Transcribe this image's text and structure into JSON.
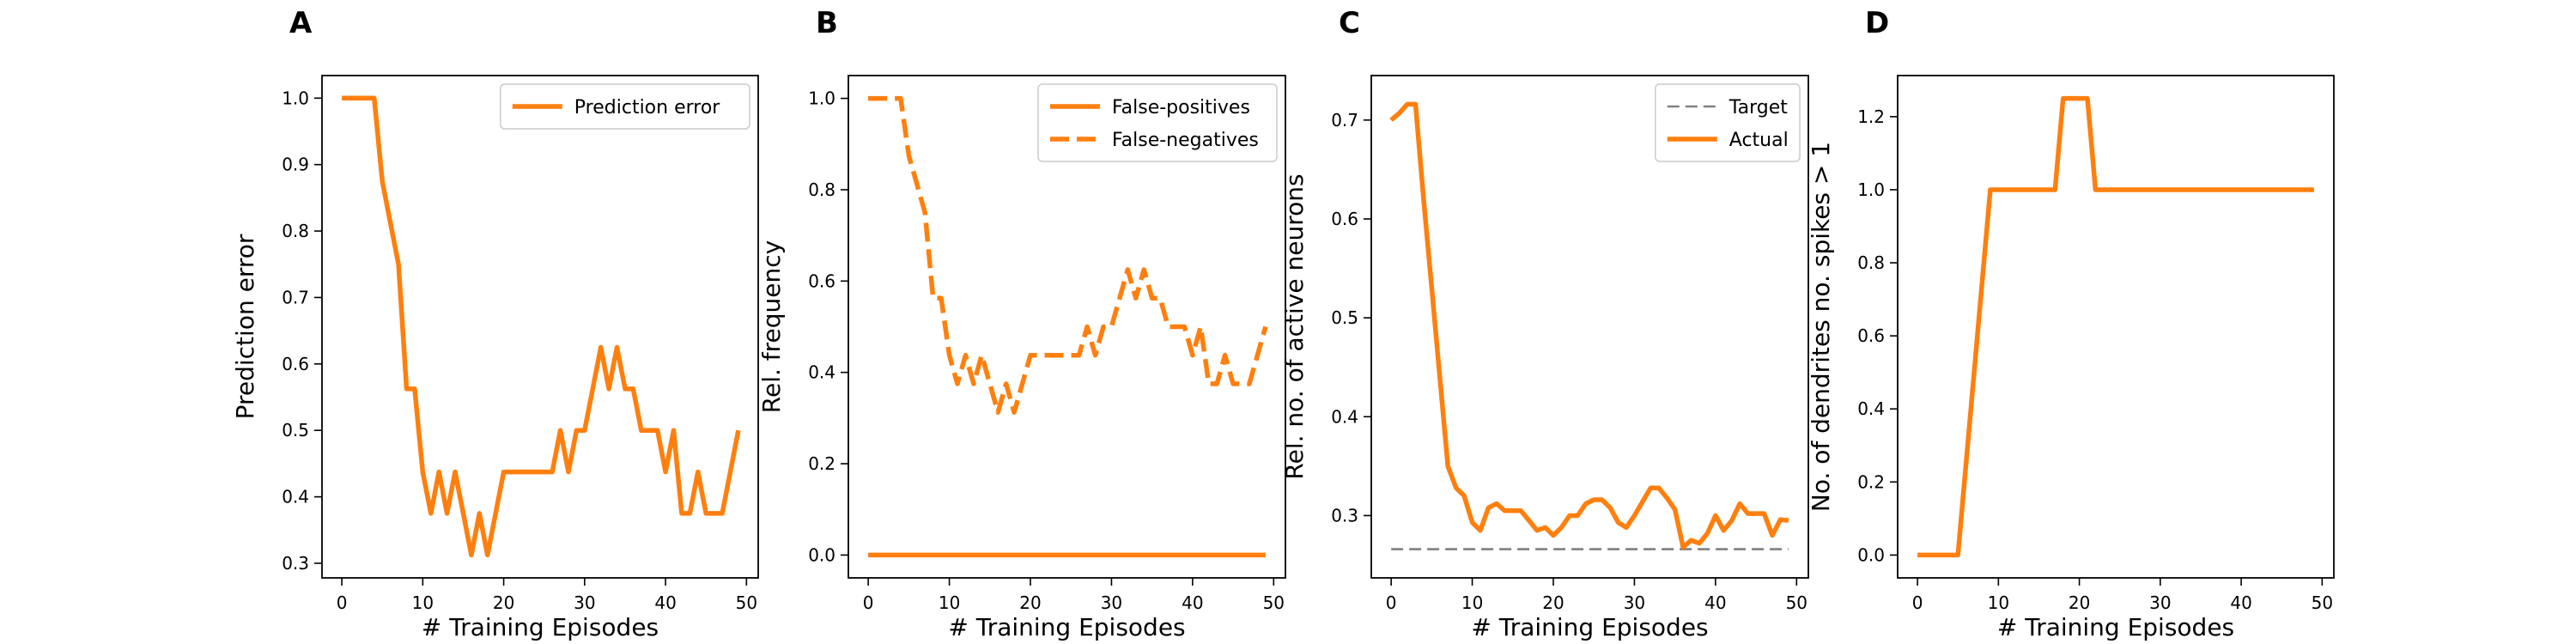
{
  "chart_data": [
    {
      "panel_label": "A",
      "type": "line",
      "xlabel": "# Training Episodes",
      "ylabel": "Prediction error",
      "xlim": [
        -2.45,
        51.45
      ],
      "ylim": [
        0.278,
        1.034
      ],
      "xticks": [
        0,
        10,
        20,
        30,
        40,
        50
      ],
      "yticks": [
        0.3,
        0.4,
        0.5,
        0.6,
        0.7,
        0.8,
        0.9,
        1.0
      ],
      "ytick_labels": [
        "0.3",
        "0.4",
        "0.5",
        "0.6",
        "0.7",
        "0.8",
        "0.9",
        "1.0"
      ],
      "legend": {
        "position": "top-right"
      },
      "series": [
        {
          "name": "Prediction error",
          "style": "solid",
          "color": "#ff7f0e",
          "x": [
            0,
            1,
            2,
            3,
            4,
            5,
            6,
            7,
            8,
            9,
            10,
            11,
            12,
            13,
            14,
            15,
            16,
            17,
            18,
            19,
            20,
            21,
            22,
            23,
            24,
            25,
            26,
            27,
            28,
            29,
            30,
            31,
            32,
            33,
            34,
            35,
            36,
            37,
            38,
            39,
            40,
            41,
            42,
            43,
            44,
            45,
            46,
            47,
            48,
            49
          ],
          "y": [
            1.0,
            1.0,
            1.0,
            1.0,
            1.0,
            0.875,
            0.8125,
            0.75,
            0.5625,
            0.5625,
            0.4375,
            0.375,
            0.4375,
            0.375,
            0.4375,
            0.375,
            0.3125,
            0.375,
            0.3125,
            0.375,
            0.4375,
            0.4375,
            0.4375,
            0.4375,
            0.4375,
            0.4375,
            0.4375,
            0.5,
            0.4375,
            0.5,
            0.5,
            0.5625,
            0.625,
            0.5625,
            0.625,
            0.5625,
            0.5625,
            0.5,
            0.5,
            0.5,
            0.4375,
            0.5,
            0.375,
            0.375,
            0.4375,
            0.375,
            0.375,
            0.375,
            0.4375,
            0.5
          ]
        }
      ]
    },
    {
      "panel_label": "B",
      "type": "line",
      "xlabel": "# Training Episodes",
      "ylabel": "Rel. frequency",
      "xlim": [
        -2.45,
        51.45
      ],
      "ylim": [
        -0.05,
        1.05
      ],
      "xticks": [
        0,
        10,
        20,
        30,
        40,
        50
      ],
      "yticks": [
        0.0,
        0.2,
        0.4,
        0.6,
        0.8,
        1.0
      ],
      "ytick_labels": [
        "0.0",
        "0.2",
        "0.4",
        "0.6",
        "0.8",
        "1.0"
      ],
      "legend": {
        "position": "top-right"
      },
      "series": [
        {
          "name": "False-positives",
          "style": "solid",
          "color": "#ff7f0e",
          "x": [
            0,
            49
          ],
          "y": [
            0.0,
            0.0
          ]
        },
        {
          "name": "False-negatives",
          "style": "dashed",
          "color": "#ff7f0e",
          "x": [
            0,
            1,
            2,
            3,
            4,
            5,
            6,
            7,
            8,
            9,
            10,
            11,
            12,
            13,
            14,
            15,
            16,
            17,
            18,
            19,
            20,
            21,
            22,
            23,
            24,
            25,
            26,
            27,
            28,
            29,
            30,
            31,
            32,
            33,
            34,
            35,
            36,
            37,
            38,
            39,
            40,
            41,
            42,
            43,
            44,
            45,
            46,
            47,
            48,
            49
          ],
          "y": [
            1.0,
            1.0,
            1.0,
            1.0,
            1.0,
            0.875,
            0.8125,
            0.75,
            0.5625,
            0.5625,
            0.4375,
            0.375,
            0.4375,
            0.375,
            0.4375,
            0.375,
            0.3125,
            0.375,
            0.3125,
            0.375,
            0.4375,
            0.4375,
            0.4375,
            0.4375,
            0.4375,
            0.4375,
            0.4375,
            0.5,
            0.4375,
            0.5,
            0.5,
            0.5625,
            0.625,
            0.5625,
            0.625,
            0.5625,
            0.5625,
            0.5,
            0.5,
            0.5,
            0.4375,
            0.5,
            0.375,
            0.375,
            0.4375,
            0.375,
            0.375,
            0.375,
            0.4375,
            0.5
          ]
        }
      ]
    },
    {
      "panel_label": "C",
      "type": "line",
      "xlabel": "# Training Episodes",
      "ylabel": "Rel. no. of active neurons",
      "xlim": [
        -2.45,
        51.45
      ],
      "ylim": [
        0.237,
        0.745
      ],
      "xticks": [
        0,
        10,
        20,
        30,
        40,
        50
      ],
      "yticks": [
        0.3,
        0.4,
        0.5,
        0.6,
        0.7
      ],
      "ytick_labels": [
        "0.3",
        "0.4",
        "0.5",
        "0.6",
        "0.7"
      ],
      "legend": {
        "position": "top-right"
      },
      "series": [
        {
          "name": "Target",
          "style": "dashed-thin",
          "color": "#808080",
          "x": [
            0,
            49
          ],
          "y": [
            0.266,
            0.266
          ]
        },
        {
          "name": "Actual",
          "style": "solid",
          "color": "#ff7f0e",
          "x": [
            0,
            1,
            2,
            3,
            4,
            5,
            6,
            7,
            8,
            9,
            10,
            11,
            12,
            13,
            14,
            15,
            16,
            17,
            18,
            19,
            20,
            21,
            22,
            23,
            24,
            25,
            26,
            27,
            28,
            29,
            30,
            31,
            32,
            33,
            34,
            35,
            36,
            37,
            38,
            39,
            40,
            41,
            42,
            43,
            44,
            45,
            46,
            47,
            48,
            49
          ],
          "y": [
            0.7,
            0.707,
            0.716,
            0.716,
            0.62,
            0.53,
            0.44,
            0.35,
            0.328,
            0.32,
            0.293,
            0.285,
            0.308,
            0.312,
            0.305,
            0.305,
            0.305,
            0.295,
            0.285,
            0.288,
            0.28,
            0.288,
            0.3,
            0.3,
            0.312,
            0.316,
            0.316,
            0.308,
            0.293,
            0.288,
            0.3,
            0.314,
            0.328,
            0.328,
            0.318,
            0.306,
            0.268,
            0.275,
            0.272,
            0.282,
            0.3,
            0.285,
            0.295,
            0.312,
            0.302,
            0.302,
            0.302,
            0.28,
            0.296,
            0.295
          ]
        }
      ]
    },
    {
      "panel_label": "D",
      "type": "line",
      "xlabel": "# Training Episodes",
      "ylabel": "No. of dendrites no. spikes > 1",
      "xlim": [
        -2.45,
        51.45
      ],
      "ylim": [
        -0.0625,
        1.3125
      ],
      "xticks": [
        0,
        10,
        20,
        30,
        40,
        50
      ],
      "yticks": [
        0.0,
        0.2,
        0.4,
        0.6,
        0.8,
        1.0,
        1.2
      ],
      "ytick_labels": [
        "0.0",
        "0.2",
        "0.4",
        "0.6",
        "0.8",
        "1.0",
        "1.2"
      ],
      "legend": {
        "position": "none"
      },
      "series": [
        {
          "style": "solid",
          "color": "#ff7f0e",
          "x": [
            0,
            5,
            9,
            17,
            18,
            21,
            22,
            49
          ],
          "y": [
            0.0,
            0.0,
            1.0,
            1.0,
            1.25,
            1.25,
            1.0,
            1.0
          ]
        }
      ]
    }
  ]
}
